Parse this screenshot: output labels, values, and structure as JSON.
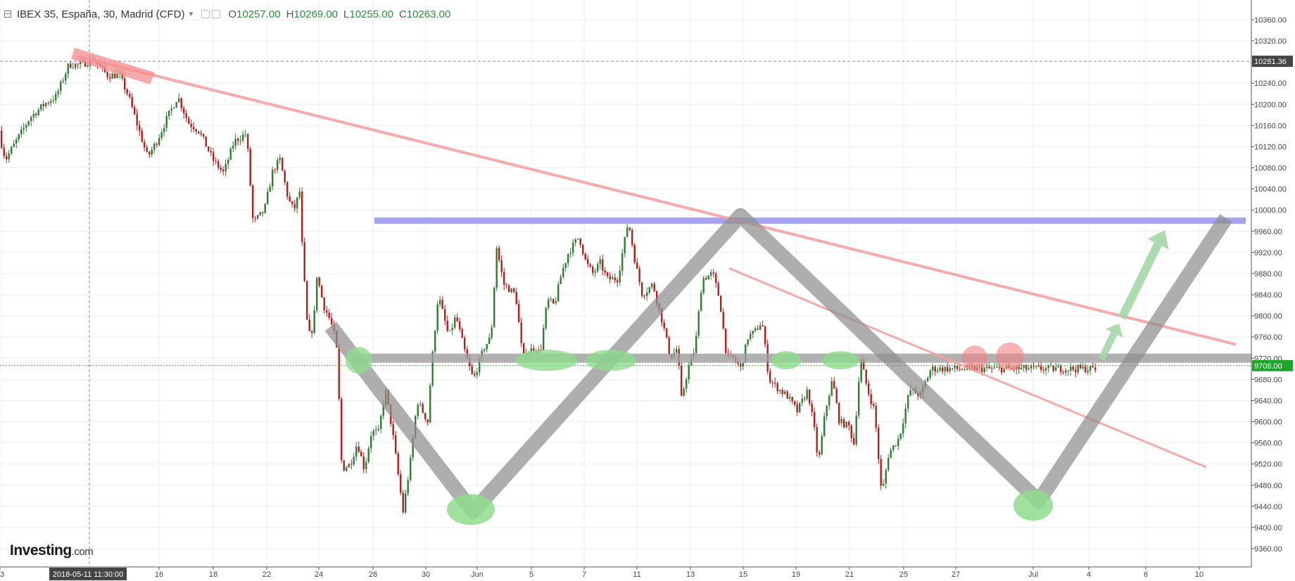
{
  "header": {
    "title": "IBEX 35, España, 30, Madrid (CFD)",
    "open_label": "O",
    "open_value": "10257.00",
    "high_label": "H",
    "high_value": "10269.00",
    "low_label": "L",
    "low_value": "10255.00",
    "close_label": "C",
    "close_value": "10263.00"
  },
  "logo": {
    "brand": "Investing",
    "suffix": ".com"
  },
  "colors": {
    "up": "#2e7d32",
    "down": "#b71c1c",
    "trendline": "#f7a1a1",
    "resistance": "#9d9bf0",
    "support": "#9e9e9e",
    "pattern": "#8f8f8f",
    "green_marker": "#8fdc8f",
    "red_marker": "#f08080",
    "arrow": "#a5d6a7",
    "price_badge": "#1ea52b",
    "crosshair_badge": "#444444"
  },
  "chart_data": {
    "type": "candlestick",
    "instrument": "IBEX 35, España, 30, Madrid (CFD)",
    "y_ticks": [
      10360,
      10320,
      10240,
      10200,
      10160,
      10120,
      10080,
      10040,
      10000,
      9960,
      9920,
      9880,
      9840,
      9800,
      9760,
      9720,
      9680,
      9640,
      9600,
      9560,
      9520,
      9480,
      9440,
      9400,
      9360
    ],
    "ylim": [
      9340,
      10380
    ],
    "x_ticks": [
      "3",
      "16",
      "18",
      "22",
      "24",
      "28",
      "30",
      "Jun",
      "5",
      "7",
      "11",
      "13",
      "15",
      "19",
      "21",
      "25",
      "27",
      "Jul",
      "4",
      "6",
      "10"
    ],
    "crosshair": {
      "time_label": "2018-05-11 11:30:00",
      "price_label": "10281.36",
      "price": 10281.36
    },
    "last_price": {
      "label": "9706.00",
      "value": 9706
    },
    "support_level": 9720,
    "resistance_level": 9980,
    "candle_path": [
      [
        0,
        10150
      ],
      [
        10,
        10095
      ],
      [
        25,
        10130
      ],
      [
        45,
        10175
      ],
      [
        65,
        10200
      ],
      [
        82,
        10215
      ],
      [
        100,
        10275
      ],
      [
        118,
        10275
      ],
      [
        135,
        10285
      ],
      [
        155,
        10255
      ],
      [
        172,
        10255
      ],
      [
        185,
        10215
      ],
      [
        200,
        10150
      ],
      [
        212,
        10100
      ],
      [
        225,
        10130
      ],
      [
        240,
        10175
      ],
      [
        255,
        10215
      ],
      [
        270,
        10165
      ],
      [
        285,
        10150
      ],
      [
        305,
        10095
      ],
      [
        320,
        10070
      ],
      [
        335,
        10130
      ],
      [
        352,
        10145
      ],
      [
        354,
        10120
      ],
      [
        362,
        9975
      ],
      [
        378,
        10000
      ],
      [
        390,
        10075
      ],
      [
        400,
        10095
      ],
      [
        412,
        10020
      ],
      [
        420,
        10000
      ],
      [
        428,
        10035
      ],
      [
        432,
        9920
      ],
      [
        440,
        9760
      ],
      [
        448,
        9780
      ],
      [
        452,
        9880
      ],
      [
        462,
        9820
      ],
      [
        472,
        9790
      ],
      [
        480,
        9750
      ],
      [
        484,
        9640
      ],
      [
        488,
        9510
      ],
      [
        500,
        9520
      ],
      [
        510,
        9560
      ],
      [
        520,
        9510
      ],
      [
        530,
        9580
      ],
      [
        540,
        9580
      ],
      [
        550,
        9660
      ],
      [
        560,
        9580
      ],
      [
        570,
        9480
      ],
      [
        575,
        9430
      ],
      [
        585,
        9520
      ],
      [
        595,
        9640
      ],
      [
        610,
        9600
      ],
      [
        615,
        9700
      ],
      [
        625,
        9840
      ],
      [
        640,
        9760
      ],
      [
        650,
        9800
      ],
      [
        665,
        9720
      ],
      [
        675,
        9680
      ],
      [
        690,
        9740
      ],
      [
        700,
        9760
      ],
      [
        708,
        9930
      ],
      [
        718,
        9860
      ],
      [
        735,
        9840
      ],
      [
        745,
        9720
      ],
      [
        760,
        9740
      ],
      [
        770,
        9730
      ],
      [
        780,
        9830
      ],
      [
        790,
        9820
      ],
      [
        800,
        9880
      ],
      [
        810,
        9920
      ],
      [
        825,
        9950
      ],
      [
        835,
        9900
      ],
      [
        845,
        9880
      ],
      [
        855,
        9900
      ],
      [
        865,
        9870
      ],
      [
        880,
        9870
      ],
      [
        895,
        9980
      ],
      [
        905,
        9900
      ],
      [
        915,
        9840
      ],
      [
        930,
        9860
      ],
      [
        945,
        9780
      ],
      [
        955,
        9720
      ],
      [
        965,
        9740
      ],
      [
        970,
        9640
      ],
      [
        980,
        9700
      ],
      [
        990,
        9740
      ],
      [
        1000,
        9870
      ],
      [
        1015,
        9880
      ],
      [
        1025,
        9830
      ],
      [
        1035,
        9720
      ],
      [
        1045,
        9720
      ],
      [
        1055,
        9700
      ],
      [
        1065,
        9760
      ],
      [
        1075,
        9770
      ],
      [
        1085,
        9790
      ],
      [
        1095,
        9680
      ],
      [
        1110,
        9660
      ],
      [
        1120,
        9650
      ],
      [
        1135,
        9620
      ],
      [
        1150,
        9660
      ],
      [
        1160,
        9580
      ],
      [
        1165,
        9520
      ],
      [
        1175,
        9620
      ],
      [
        1185,
        9680
      ],
      [
        1195,
        9600
      ],
      [
        1210,
        9590
      ],
      [
        1215,
        9550
      ],
      [
        1225,
        9720
      ],
      [
        1235,
        9660
      ],
      [
        1245,
        9620
      ],
      [
        1255,
        9460
      ],
      [
        1265,
        9540
      ],
      [
        1280,
        9570
      ],
      [
        1295,
        9660
      ],
      [
        1310,
        9650
      ],
      [
        1325,
        9700
      ]
    ]
  }
}
